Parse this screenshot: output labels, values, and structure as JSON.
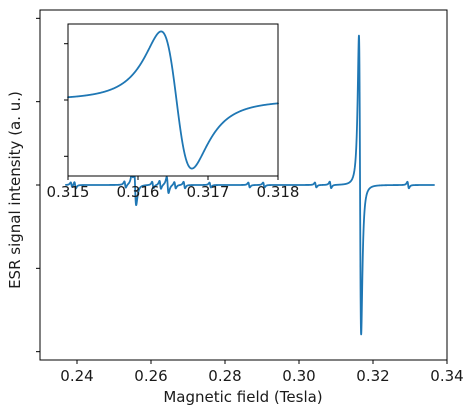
{
  "chart_data": [
    {
      "type": "line",
      "role": "main",
      "title": "",
      "xlabel": "Magnetic field (Tesla)",
      "ylabel": "ESR signal intensity (a. u.)",
      "xlim": [
        0.23,
        0.34
      ],
      "ylim": [
        -1.05,
        1.05
      ],
      "xticks": [
        0.24,
        0.26,
        0.28,
        0.3,
        0.32,
        0.34
      ],
      "xtick_labels": [
        "0.24",
        "0.26",
        "0.28",
        "0.30",
        "0.32",
        "0.34"
      ],
      "yticks": [
        -1.0,
        -0.5,
        0.0,
        0.5,
        1.0
      ],
      "ytick_labels": [
        "",
        "",
        "",
        "",
        ""
      ],
      "grid": false,
      "color": "#1f77b4",
      "x_range": [
        0.237,
        0.3365
      ],
      "baseline": 0.0,
      "features": [
        {
          "center": 0.2385,
          "amplitude": 0.015,
          "width": 0.0002
        },
        {
          "center": 0.2395,
          "amplitude": 0.02,
          "width": 0.0002
        },
        {
          "center": 0.253,
          "amplitude": 0.02,
          "width": 0.0002
        },
        {
          "center": 0.255,
          "amplitude": 0.04,
          "width": 0.0002
        },
        {
          "center": 0.2557,
          "amplitude": 0.12,
          "width": 0.0003
        },
        {
          "center": 0.2605,
          "amplitude": 0.02,
          "width": 0.0002
        },
        {
          "center": 0.2625,
          "amplitude": 0.025,
          "width": 0.0002
        },
        {
          "center": 0.2645,
          "amplitude": 0.05,
          "width": 0.00025
        },
        {
          "center": 0.2665,
          "amplitude": 0.02,
          "width": 0.0002
        },
        {
          "center": 0.269,
          "amplitude": 0.02,
          "width": 0.0002
        },
        {
          "center": 0.276,
          "amplitude": 0.015,
          "width": 0.0002
        },
        {
          "center": 0.2865,
          "amplitude": 0.015,
          "width": 0.0002
        },
        {
          "center": 0.2905,
          "amplitude": 0.015,
          "width": 0.0002
        },
        {
          "center": 0.3045,
          "amplitude": 0.015,
          "width": 0.0002
        },
        {
          "center": 0.3085,
          "amplitude": 0.02,
          "width": 0.0002
        },
        {
          "center": 0.3165,
          "amplitude": 0.92,
          "width": 0.0003
        },
        {
          "center": 0.3295,
          "amplitude": 0.02,
          "width": 0.0002
        }
      ]
    },
    {
      "type": "line",
      "role": "inset",
      "title": "",
      "xlabel": "",
      "ylabel": "",
      "xlim": [
        0.315,
        0.318
      ],
      "ylim": [
        -1.08,
        1.08
      ],
      "xticks": [
        0.315,
        0.316,
        0.317,
        0.318
      ],
      "xtick_labels": [
        "0.315",
        "0.316",
        "0.317",
        "0.318"
      ],
      "yticks": [
        -0.8,
        0.0,
        0.8
      ],
      "ytick_labels": [
        "",
        "",
        ""
      ],
      "grid": false,
      "color": "#1f77b4",
      "baseline": 0.0,
      "features": [
        {
          "center": 0.31655,
          "amplitude": 1.0,
          "width": 0.00022
        }
      ]
    }
  ]
}
